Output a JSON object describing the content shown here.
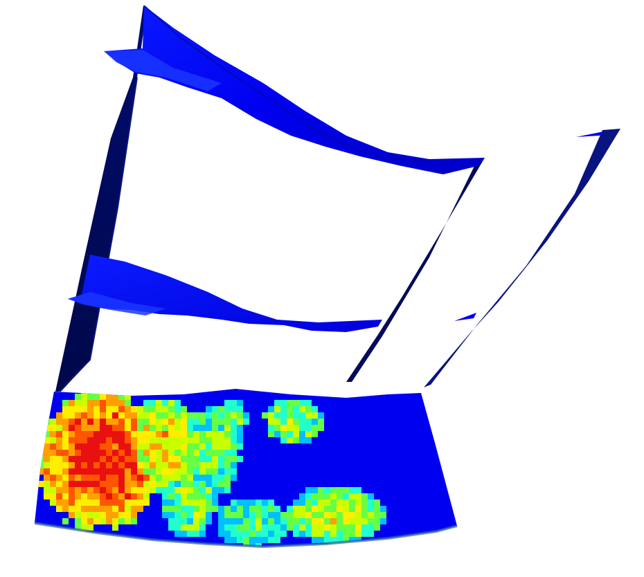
{
  "view": {
    "background": "#ffffff"
  },
  "colors": {
    "surface_blue": "#0000f0",
    "surface_blue_light": "#1a2cff",
    "edge_dark": "#050a5a",
    "edge_mid": "#0d1780",
    "colormap": [
      "#0000f0",
      "#00c0ff",
      "#22ffcc",
      "#66ff44",
      "#c8ff00",
      "#ffee00",
      "#ffa000",
      "#ff5500",
      "#e81010"
    ]
  },
  "model": {
    "surfaces": [
      "upper-horizon-surface",
      "middle-horizon-surface",
      "fault-plane-left",
      "fault-plane-right",
      "property-grid-layer"
    ],
    "property_layer_colormap": "jet"
  }
}
